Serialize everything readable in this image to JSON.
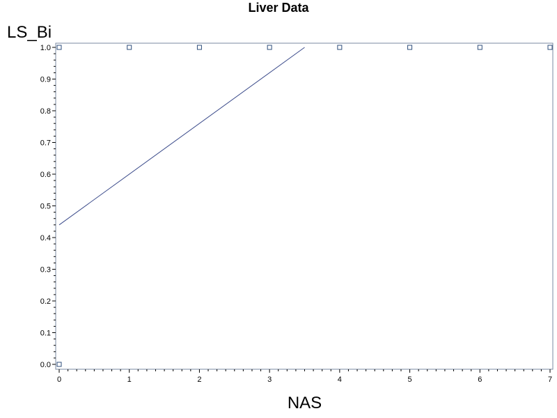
{
  "chart_data": {
    "type": "scatter",
    "title": "Liver Data",
    "xlabel": "NAS",
    "ylabel": "LS_Bi",
    "xlim": [
      0,
      7
    ],
    "ylim": [
      0,
      1
    ],
    "x_ticks": [
      0,
      1,
      2,
      3,
      4,
      5,
      6,
      7
    ],
    "y_ticks": [
      0,
      0.1,
      0.2,
      0.3,
      0.4,
      0.5,
      0.6,
      0.7,
      0.8,
      0.9,
      1.0
    ],
    "points": [
      {
        "x": 0,
        "y": 1.0
      },
      {
        "x": 0,
        "y": 0.0
      },
      {
        "x": 1,
        "y": 1.0
      },
      {
        "x": 2,
        "y": 1.0
      },
      {
        "x": 3,
        "y": 1.0
      },
      {
        "x": 4,
        "y": 1.0
      },
      {
        "x": 5,
        "y": 1.0
      },
      {
        "x": 6,
        "y": 1.0
      },
      {
        "x": 7,
        "y": 1.0
      }
    ],
    "fit_line": {
      "x": [
        0,
        3.5
      ],
      "y": [
        0.44,
        1.0
      ]
    },
    "grid": false,
    "legend": "none",
    "colors": {
      "marker": "#2e4d7b",
      "line": "#3a4a8a",
      "frame": "#7a8aa0"
    }
  }
}
